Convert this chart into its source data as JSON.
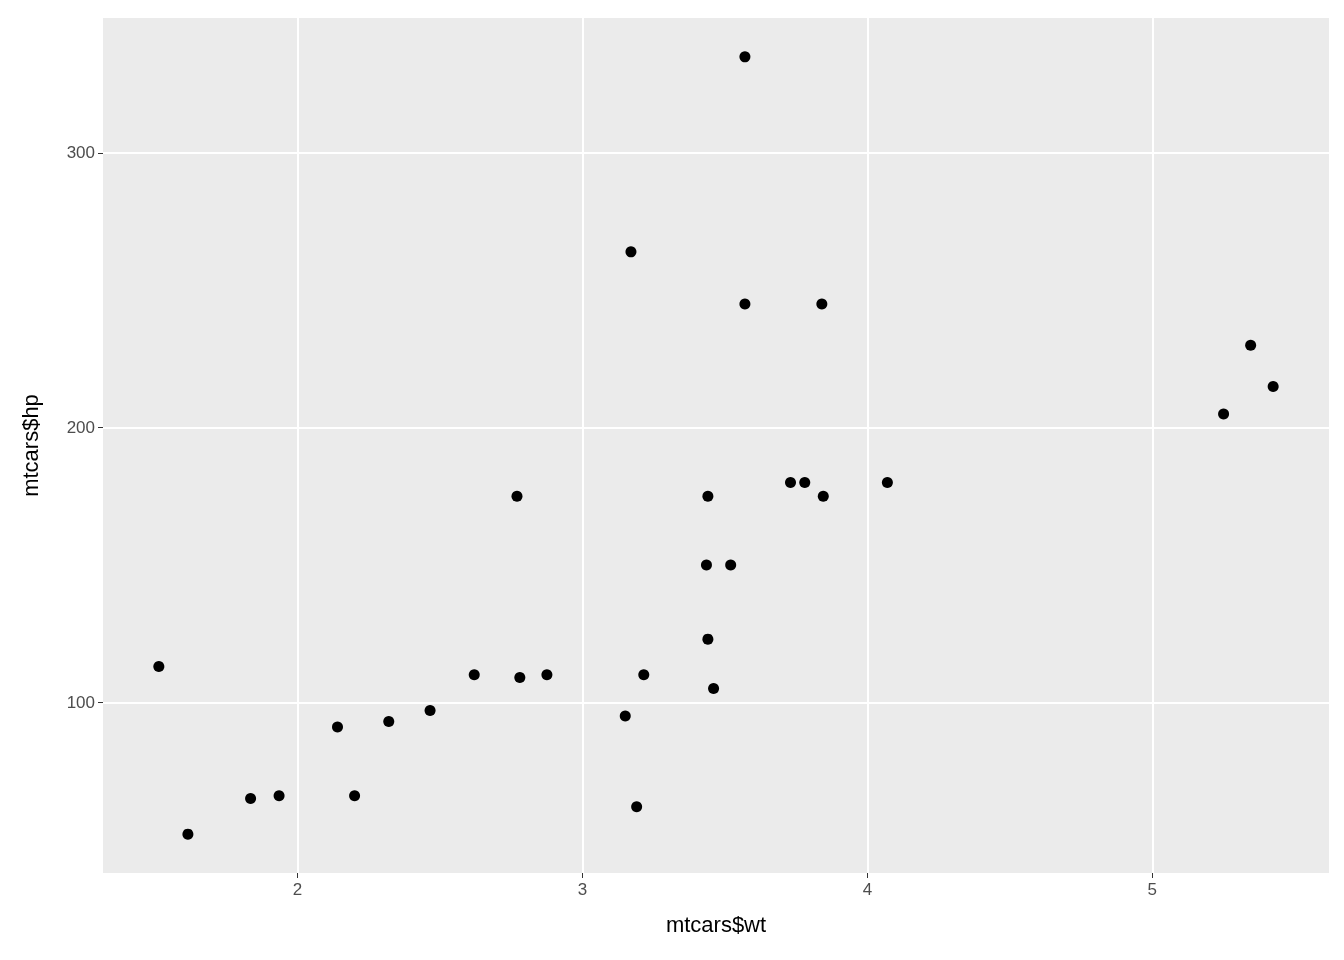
{
  "chart_data": {
    "type": "scatter",
    "xlabel": "mtcars$wt",
    "ylabel": "mtcars$hp",
    "x": [
      2.62,
      2.875,
      2.32,
      3.215,
      3.44,
      3.46,
      3.57,
      3.19,
      3.15,
      3.44,
      4.07,
      3.73,
      3.78,
      5.25,
      5.424,
      5.345,
      2.2,
      1.615,
      1.835,
      2.465,
      3.52,
      3.435,
      3.84,
      3.845,
      1.935,
      2.14,
      1.513,
      3.17,
      2.77,
      3.57,
      2.78
    ],
    "values": [
      110,
      110,
      93,
      110,
      175,
      105,
      245,
      62,
      95,
      123,
      180,
      180,
      180,
      205,
      215,
      230,
      66,
      52,
      65,
      97,
      150,
      150,
      245,
      175,
      66,
      91,
      113,
      264,
      175,
      335,
      109
    ],
    "color": "#000000",
    "marker": "circle",
    "xlim": [
      1.317,
      5.62
    ],
    "xticks": [
      2,
      3,
      4,
      5
    ],
    "ylim": [
      37.85,
      349.15
    ],
    "yticks": [
      100,
      200,
      300
    ],
    "grid": true
  }
}
